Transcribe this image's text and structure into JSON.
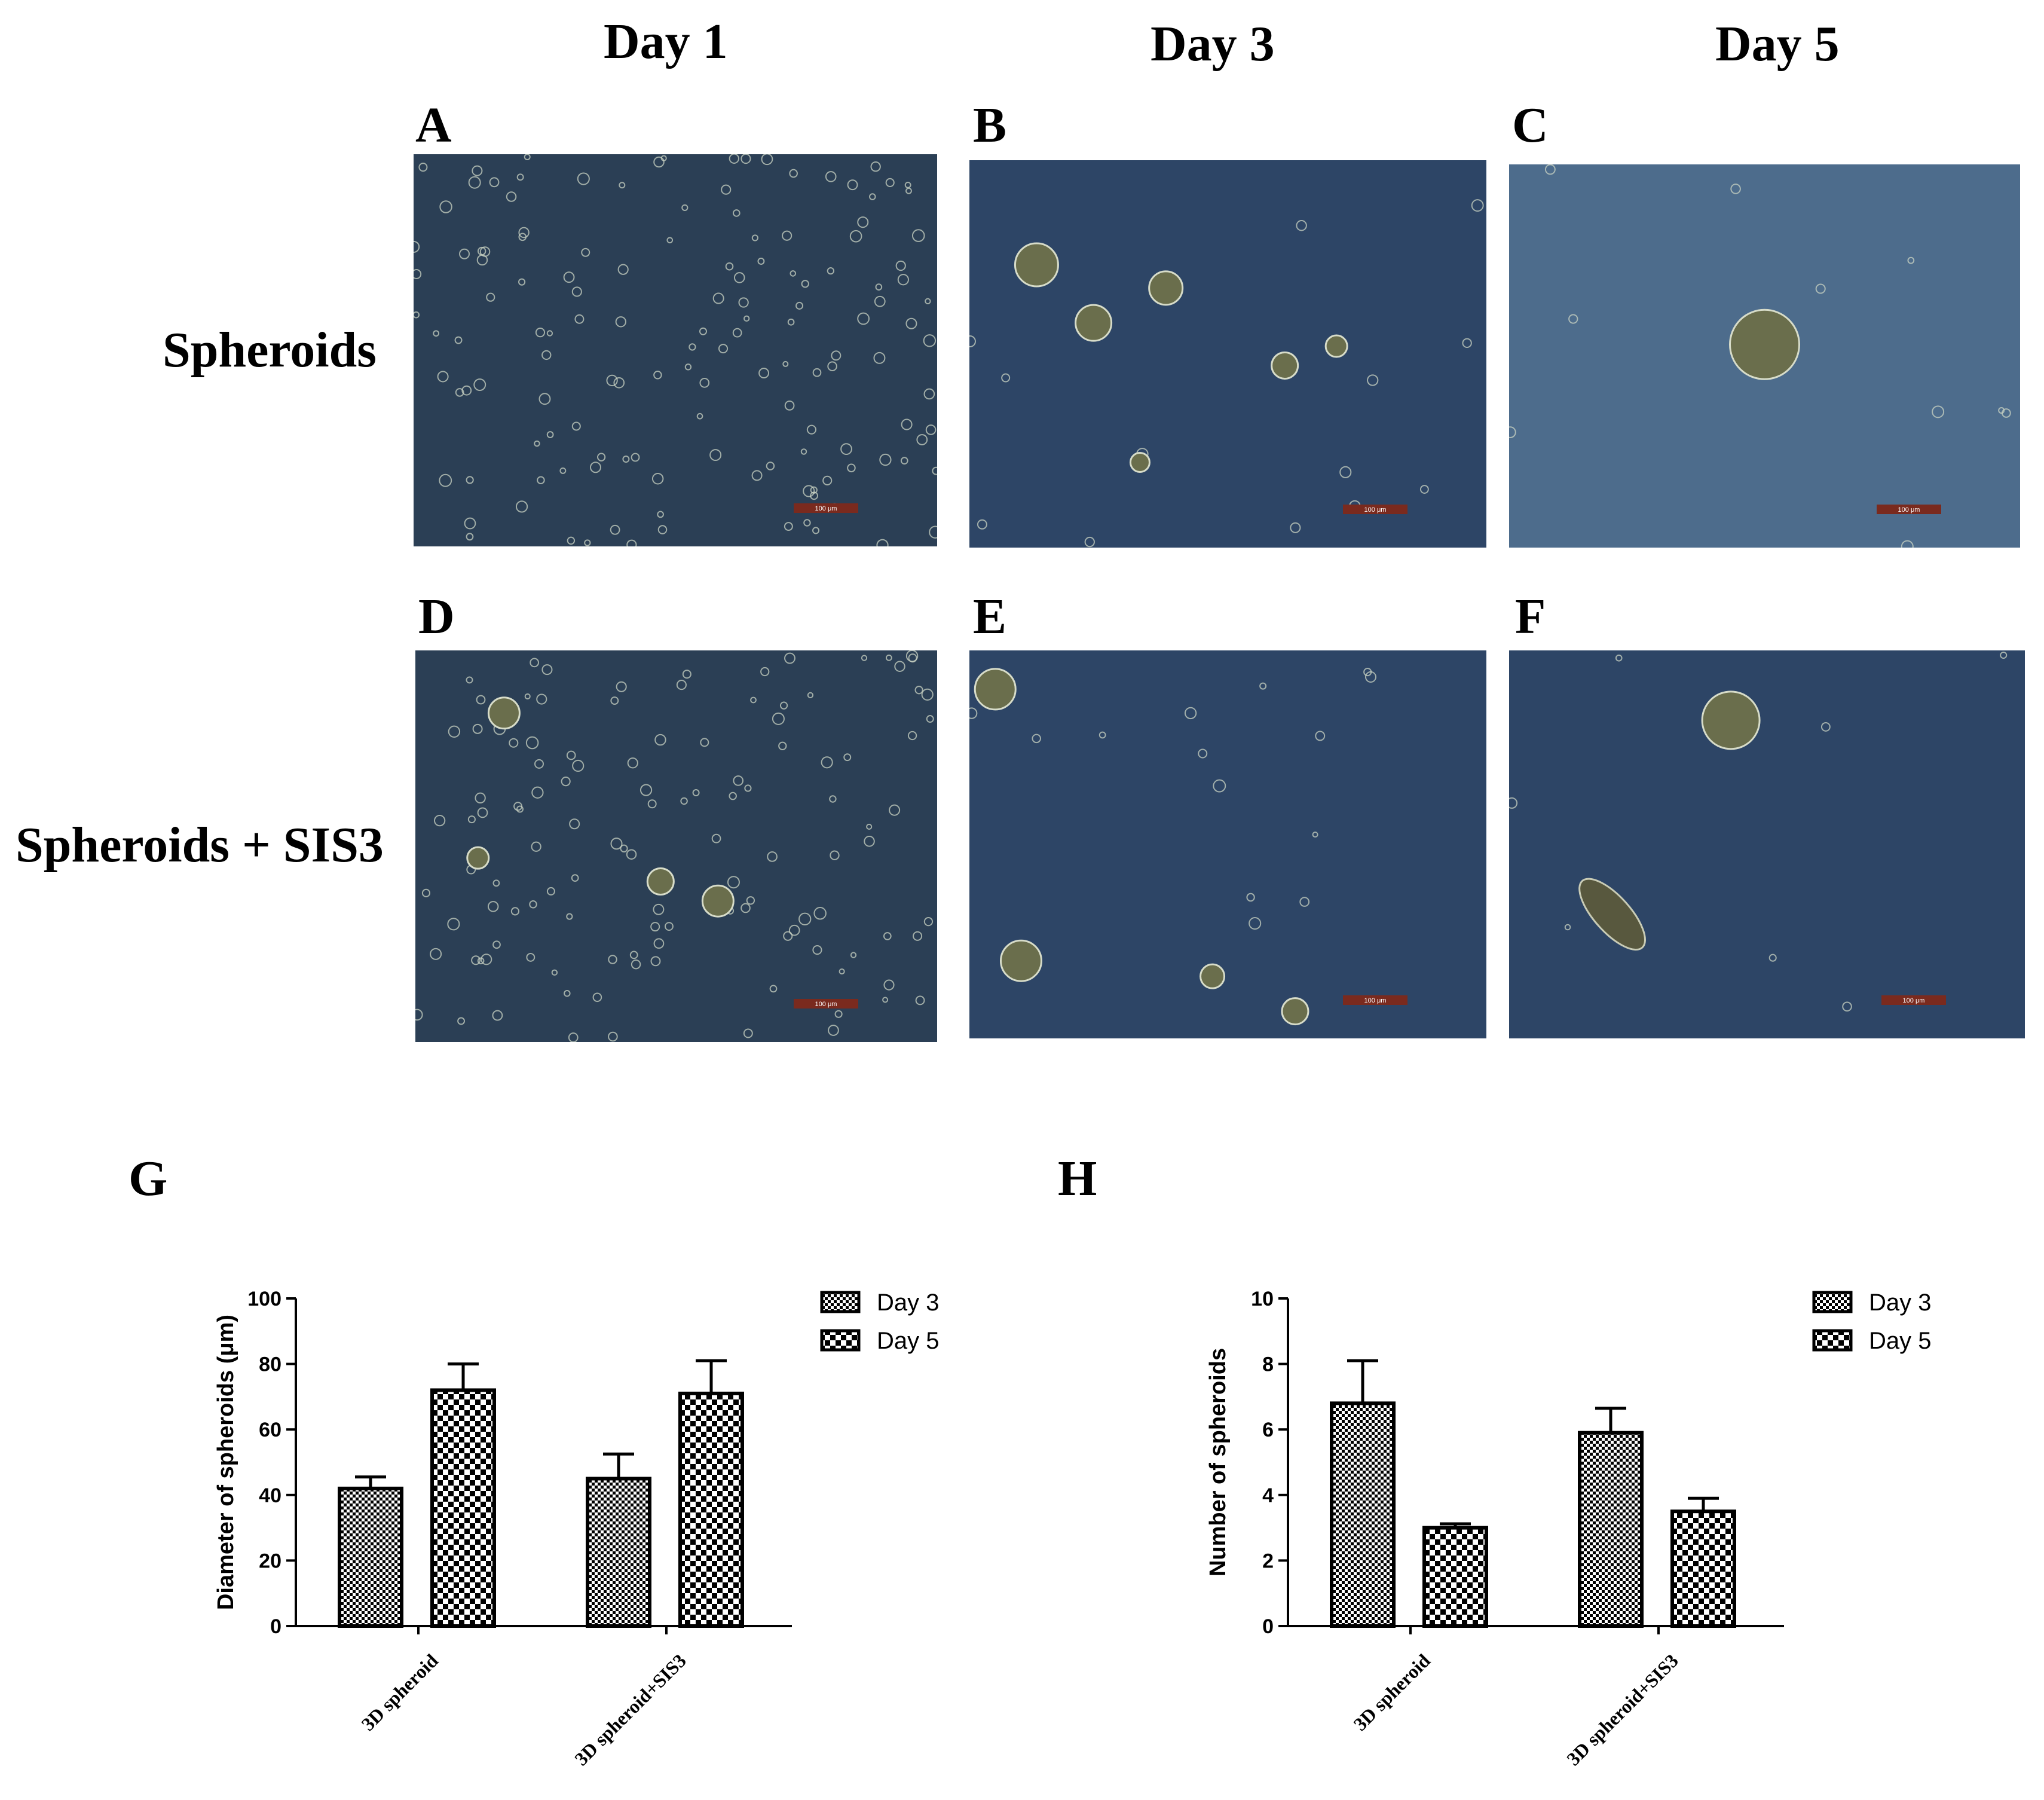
{
  "headers": {
    "columns": [
      "Day 1",
      "Day 3",
      "Day 5"
    ],
    "rows": [
      "Spheroids",
      "Spheroids + SIS3"
    ]
  },
  "panels": [
    {
      "label": "A",
      "scale_bar": "100 μm",
      "bg": "#2b3f55"
    },
    {
      "label": "B",
      "scale_bar": "100 μm",
      "bg": "#2d4566"
    },
    {
      "label": "C",
      "scale_bar": "100 μm",
      "bg": "#4d6c8c"
    },
    {
      "label": "D",
      "scale_bar": "100 μm",
      "bg": "#2b3f55"
    },
    {
      "label": "E",
      "scale_bar": "100 μm",
      "bg": "#2d4566"
    },
    {
      "label": "F",
      "scale_bar": "100 μm",
      "bg": "#2d4566"
    }
  ],
  "chart_data": [
    {
      "panel": "G",
      "type": "bar",
      "categories": [
        "3D spheroid",
        "3D spheroid+SIS3"
      ],
      "series": [
        {
          "name": "Day 3",
          "values": [
            42,
            45
          ],
          "errors": [
            3.5,
            7.5
          ]
        },
        {
          "name": "Day 5",
          "values": [
            72,
            71
          ],
          "errors": [
            8,
            10
          ]
        }
      ],
      "ylabel": "Diameter of spheroids (μm)",
      "ylim": [
        0,
        100
      ],
      "yticks": [
        0,
        20,
        40,
        60,
        80,
        100
      ],
      "legend": "top-right"
    },
    {
      "panel": "H",
      "type": "bar",
      "categories": [
        "3D spheroid",
        "3D spheroid+SIS3"
      ],
      "series": [
        {
          "name": "Day 3",
          "values": [
            6.8,
            5.9
          ],
          "errors": [
            1.3,
            0.75
          ]
        },
        {
          "name": "Day 5",
          "values": [
            3.0,
            3.5
          ],
          "errors": [
            0.12,
            0.4
          ]
        }
      ],
      "ylabel": "Number of spheroids",
      "ylim": [
        0,
        10
      ],
      "yticks": [
        0,
        2,
        4,
        6,
        8,
        10
      ],
      "legend": "top-right"
    }
  ]
}
